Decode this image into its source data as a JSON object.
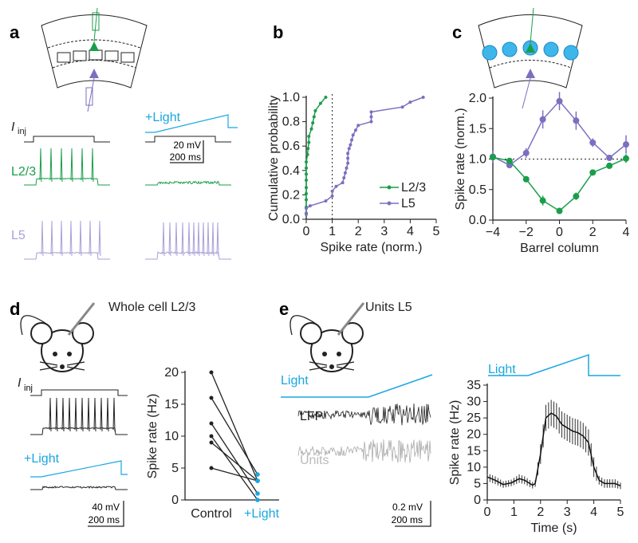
{
  "panels": {
    "a": {
      "label": "a",
      "iinj": "I",
      "iinj_sub": "inj",
      "light": "+Light",
      "l23": "L2/3",
      "l5": "L5",
      "scale_mv": "20 mV",
      "scale_ms": "200 ms"
    },
    "b": {
      "label": "b"
    },
    "c": {
      "label": "c"
    },
    "d": {
      "label": "d",
      "title": "Whole cell L2/3",
      "iinj": "I",
      "iinj_sub": "inj",
      "light": "+Light",
      "scale_mv": "40 mV",
      "scale_ms": "200 ms"
    },
    "e": {
      "label": "e",
      "title": "Units L5",
      "light": "Light",
      "lfp": "LFP",
      "units": "Units",
      "scale_mv": "0.2 mV",
      "scale_ms": "200 ms",
      "light2": "Light"
    }
  },
  "colors": {
    "green": "#1a9e4a",
    "purple": "#7b6fc0",
    "cyan": "#1aa7e0",
    "black": "#222222",
    "gray": "#aaaaaa",
    "lightpurple": "#a9a0d8"
  },
  "chart_data": [
    {
      "id": "b",
      "type": "line",
      "xlabel": "Spike rate (norm.)",
      "ylabel": "Cumulative probability",
      "xlim": [
        0,
        5
      ],
      "ylim": [
        0,
        1
      ],
      "xticks": [
        "0",
        "1",
        "2",
        "3",
        "4",
        "5"
      ],
      "yticks": [
        "0.0",
        "0.2",
        "0.4",
        "0.6",
        "0.8",
        "1.0"
      ],
      "reference_x": 1,
      "legend": "bottom-right",
      "series": [
        {
          "name": "L2/3",
          "x": [
            0,
            0,
            0,
            0,
            0,
            0,
            0,
            0,
            0,
            0.05,
            0.07,
            0.1,
            0.1,
            0.2,
            0.25,
            0.3,
            0.35,
            0.55,
            0.75
          ],
          "y": [
            0.05,
            0.1,
            0.16,
            0.21,
            0.26,
            0.32,
            0.37,
            0.42,
            0.47,
            0.53,
            0.58,
            0.63,
            0.68,
            0.74,
            0.79,
            0.84,
            0.89,
            0.95,
            1.0
          ]
        },
        {
          "name": "L5",
          "x": [
            0,
            0,
            0.15,
            0.75,
            1,
            1,
            1.15,
            1.4,
            1.45,
            1.5,
            1.55,
            1.6,
            1.6,
            1.6,
            1.65,
            1.7,
            1.75,
            1.8,
            1.9,
            2,
            2.5,
            2.5,
            2.5,
            3.7,
            4,
            4.5
          ],
          "y": [
            0.04,
            0.09,
            0.11,
            0.15,
            0.19,
            0.23,
            0.27,
            0.3,
            0.34,
            0.38,
            0.42,
            0.46,
            0.5,
            0.54,
            0.58,
            0.61,
            0.65,
            0.69,
            0.73,
            0.77,
            0.8,
            0.84,
            0.88,
            0.92,
            0.96,
            1.0
          ]
        }
      ]
    },
    {
      "id": "c",
      "type": "line",
      "xlabel": "Barrel column",
      "ylabel": "Spike rate (norm.)",
      "xlim": [
        -4,
        4
      ],
      "ylim": [
        0,
        2
      ],
      "xticks": [
        "−4",
        "−2",
        "0",
        "2",
        "4"
      ],
      "yticks": [
        "0.0",
        "0.5",
        "1.0",
        "1.5",
        "2.0"
      ],
      "reference_y": 1,
      "x": [
        -4,
        -3,
        -2,
        -1,
        0,
        1,
        2,
        3,
        4
      ],
      "series": [
        {
          "name": "L5",
          "values": [
            1.04,
            0.9,
            1.1,
            1.65,
            1.95,
            1.63,
            1.27,
            1.02,
            1.24
          ],
          "err": [
            0.1,
            0.05,
            0.08,
            0.15,
            0.15,
            0.15,
            0.07,
            0.04,
            0.15
          ]
        },
        {
          "name": "L2/3",
          "values": [
            1.03,
            0.97,
            0.67,
            0.32,
            0.15,
            0.39,
            0.78,
            0.89,
            1.01
          ],
          "err": [
            0.05,
            0.03,
            0.04,
            0.08,
            0.05,
            0.06,
            0.04,
            0.04,
            0.07
          ]
        }
      ]
    },
    {
      "id": "d",
      "type": "line",
      "ylabel": "Spike rate (Hz)",
      "ylim": [
        0,
        20
      ],
      "yticks": [
        "0",
        "5",
        "10",
        "15",
        "20"
      ],
      "categories": [
        "Control",
        "+Light"
      ],
      "pairs": [
        [
          20,
          3
        ],
        [
          16,
          4
        ],
        [
          12,
          1
        ],
        [
          10,
          0
        ],
        [
          9,
          3
        ],
        [
          5,
          3
        ]
      ]
    },
    {
      "id": "e",
      "type": "line",
      "xlabel": "Time (s)",
      "ylabel": "Spike rate (Hz)",
      "xlim": [
        0,
        5
      ],
      "ylim": [
        0,
        35
      ],
      "xticks": [
        "0",
        "1",
        "2",
        "3",
        "4",
        "5"
      ],
      "yticks": [
        "0",
        "5",
        "10",
        "15",
        "20",
        "25",
        "30",
        "35"
      ],
      "x": [
        0,
        0.3,
        0.6,
        0.9,
        1.2,
        1.4,
        1.7,
        1.8,
        2.0,
        2.2,
        2.4,
        2.6,
        2.8,
        3.0,
        3.2,
        3.4,
        3.6,
        3.8,
        4.0,
        4.2,
        4.4,
        4.6,
        4.8,
        5.0
      ],
      "values": [
        7,
        6,
        4.7,
        5.2,
        6.5,
        6,
        4.5,
        5,
        14,
        25,
        26.5,
        25.5,
        23,
        22,
        21,
        20.5,
        19.5,
        17.5,
        10,
        6,
        5,
        5,
        5,
        4.3
      ],
      "err": [
        1.2,
        1.2,
        1,
        1,
        1.3,
        1.2,
        1,
        1,
        3,
        4,
        4,
        4,
        4,
        4,
        4,
        4,
        4,
        4,
        3,
        1.3,
        1.3,
        1.3,
        1.3,
        1
      ]
    }
  ]
}
